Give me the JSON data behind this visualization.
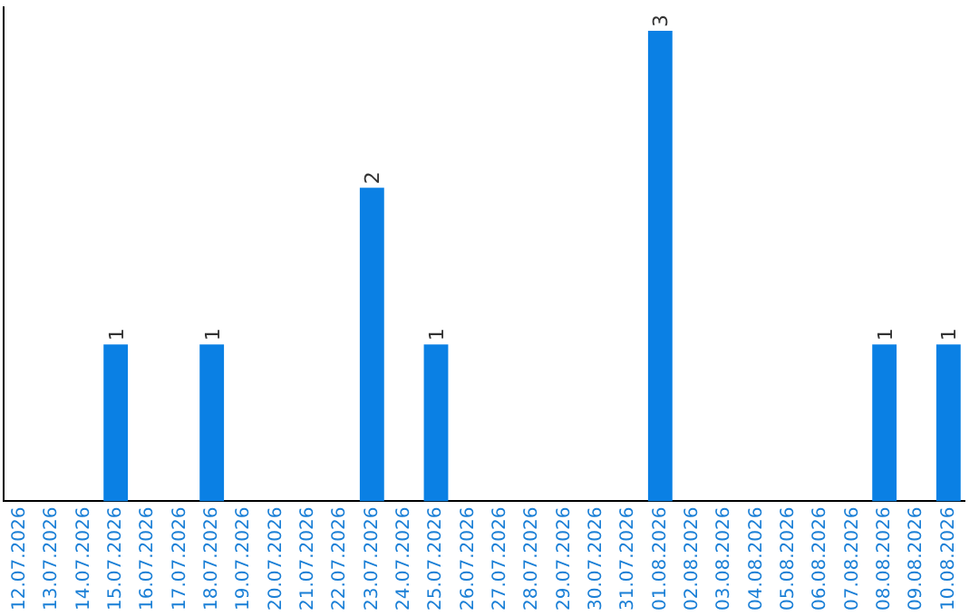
{
  "chart_data": {
    "type": "bar",
    "categories": [
      "12.07.2026",
      "13.07.2026",
      "14.07.2026",
      "15.07.2026",
      "16.07.2026",
      "17.07.2026",
      "18.07.2026",
      "19.07.2026",
      "20.07.2026",
      "21.07.2026",
      "22.07.2026",
      "23.07.2026",
      "24.07.2026",
      "25.07.2026",
      "26.07.2026",
      "27.07.2026",
      "28.07.2026",
      "29.07.2026",
      "30.07.2026",
      "31.07.2026",
      "01.08.2026",
      "02.08.2026",
      "03.08.2026",
      "04.08.2026",
      "05.08.2026",
      "06.08.2026",
      "07.08.2026",
      "08.08.2026",
      "09.08.2026",
      "10.08.2026"
    ],
    "values": [
      0,
      0,
      0,
      1,
      0,
      0,
      1,
      0,
      0,
      0,
      0,
      2,
      0,
      1,
      0,
      0,
      0,
      0,
      0,
      0,
      3,
      0,
      0,
      0,
      0,
      0,
      0,
      1,
      0,
      1
    ],
    "value_labels": [
      null,
      null,
      null,
      "1",
      null,
      null,
      "1",
      null,
      null,
      null,
      null,
      "2",
      null,
      "1",
      null,
      null,
      null,
      null,
      null,
      null,
      "3",
      null,
      null,
      null,
      null,
      null,
      null,
      "1",
      null,
      "1"
    ],
    "color": "#0a80e4",
    "ylim": [
      0,
      3.15
    ],
    "tick_labels": "x",
    "grid": false,
    "legend": false
  }
}
